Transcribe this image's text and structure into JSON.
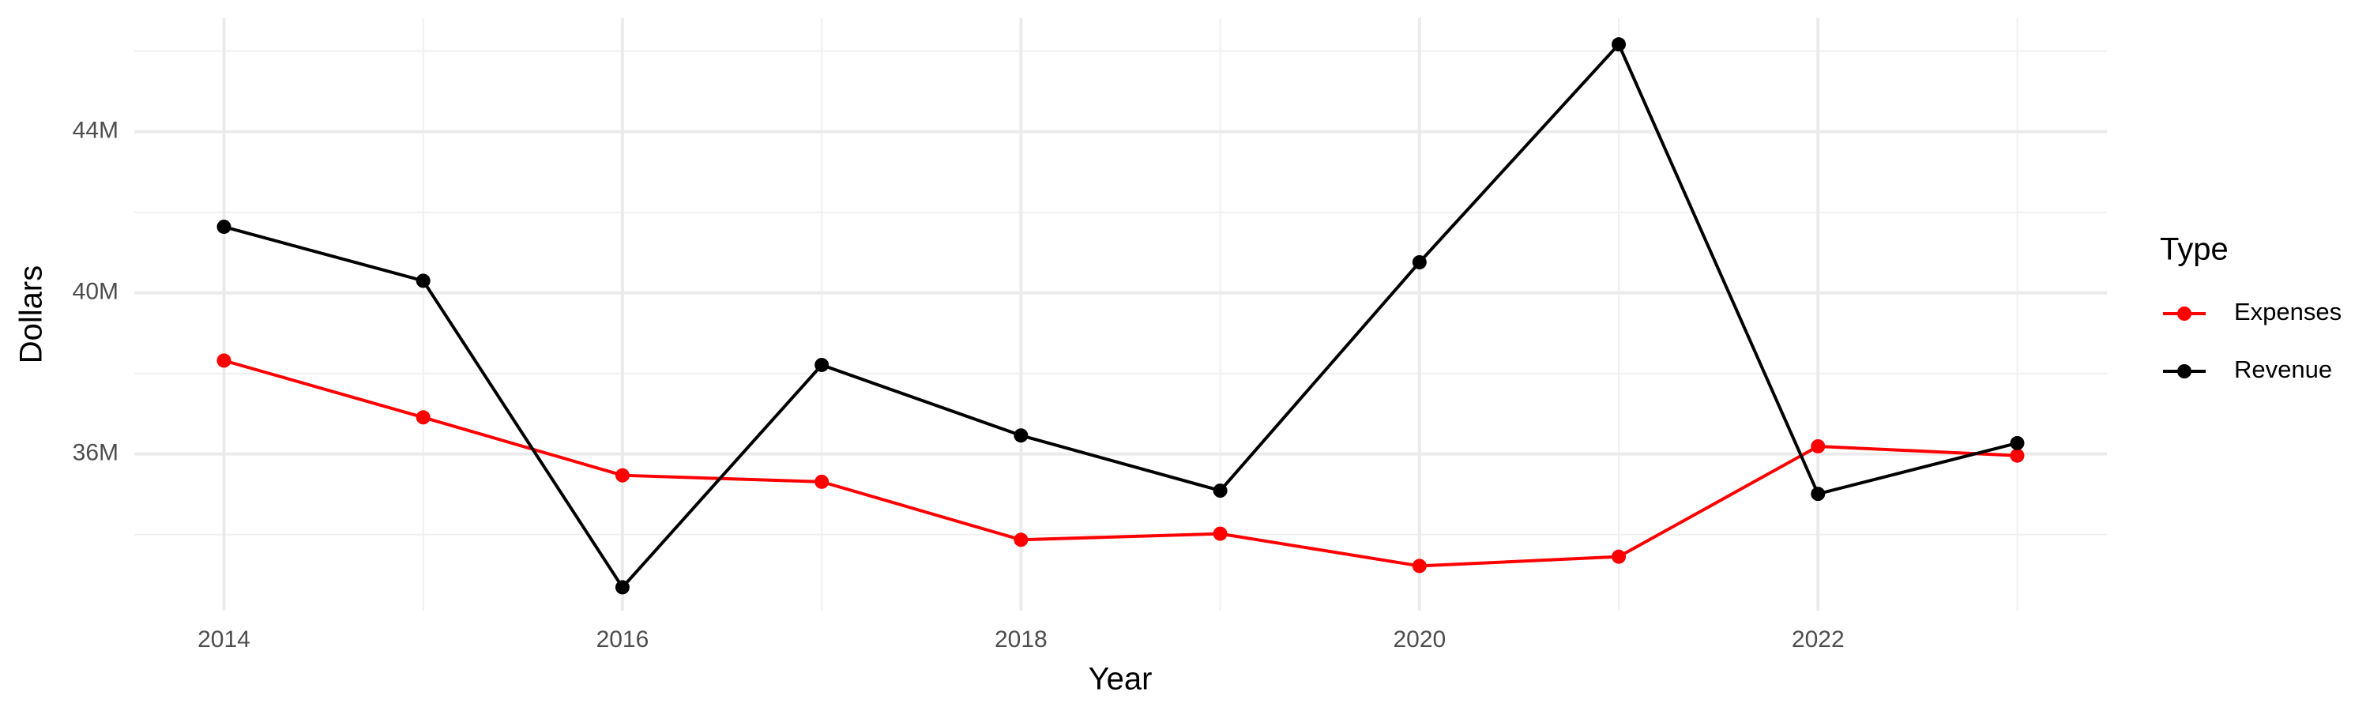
{
  "chart_data": {
    "type": "line",
    "x_label": "Year",
    "y_label": "Dollars",
    "legend_title": "Type",
    "x": [
      2014,
      2015,
      2016,
      2017,
      2018,
      2019,
      2020,
      2021,
      2022,
      2023
    ],
    "series": [
      {
        "name": "Expenses",
        "color": "#ff0000",
        "values": [
          38320000,
          36910000,
          35470000,
          35310000,
          33870000,
          34020000,
          33220000,
          33450000,
          36190000,
          35960000
        ]
      },
      {
        "name": "Revenue",
        "color": "#000000",
        "values": [
          41640000,
          40300000,
          32690000,
          38210000,
          36460000,
          35090000,
          40760000,
          46170000,
          35010000,
          36270000
        ]
      }
    ],
    "xlim": [
      2013.55,
      2023.45
    ],
    "xticks": [
      2014,
      2016,
      2018,
      2020,
      2022
    ],
    "ylim": [
      32110000,
      46820000
    ],
    "yticks": [
      {
        "value": 36000000,
        "label": "36M"
      },
      {
        "value": 40000000,
        "label": "40M"
      },
      {
        "value": 44000000,
        "label": "44M"
      }
    ],
    "grid": true,
    "legend": "right"
  }
}
